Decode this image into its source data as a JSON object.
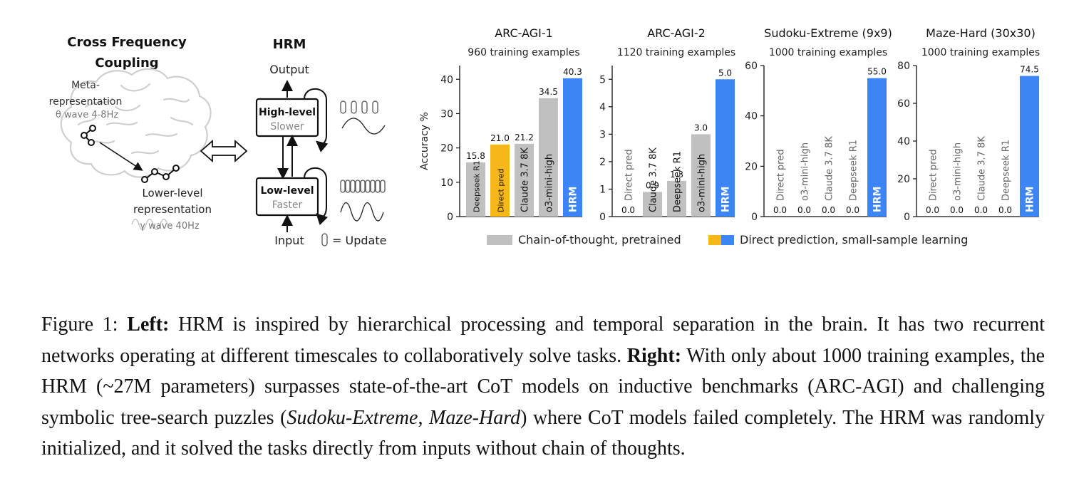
{
  "left_panel": {
    "brain_title_line1": "Cross Frequency",
    "brain_title_line2": "Coupling",
    "meta_label_line1": "Meta-",
    "meta_label_line2": "representation",
    "theta_label": "θ wave 4-8Hz",
    "lower_label_line1": "Lower-level",
    "lower_label_line2": "representation",
    "gamma_label": "γ wave 40Hz",
    "hrm_title": "HRM",
    "output_label": "Output",
    "input_label": "Input",
    "high_level_label": "High-level",
    "high_level_sub": "Slower",
    "low_level_label": "Low-level",
    "low_level_sub": "Faster",
    "update_legend": "= Update"
  },
  "chart_data": [
    {
      "type": "bar",
      "title": "ARC-AGI-1",
      "subtitle": "960 training examples",
      "ylabel": "Accuracy %",
      "ylim": [
        0,
        44
      ],
      "yticks": [
        0,
        10,
        20,
        30,
        40
      ],
      "categories": [
        "Deepseek R1",
        "Direct pred",
        "Claude 3.7 8K",
        "o3-mini-high",
        "HRM"
      ],
      "values": [
        15.8,
        21.0,
        21.2,
        34.5,
        40.3
      ],
      "value_labels": [
        "15.8",
        "21.0",
        "21.2",
        "34.5",
        "40.3"
      ],
      "groups": [
        "cot",
        "direct",
        "cot",
        "cot",
        "hrm"
      ]
    },
    {
      "type": "bar",
      "title": "ARC-AGI-2",
      "subtitle": "1120 training examples",
      "ylabel": "",
      "ylim": [
        0,
        5.5
      ],
      "yticks": [
        0,
        1,
        2,
        3,
        4,
        5
      ],
      "categories": [
        "Direct pred",
        "Claude 3.7 8K",
        "Deepseek R1",
        "o3-mini-high",
        "HRM"
      ],
      "values": [
        0.0,
        0.9,
        1.3,
        3.0,
        5.0
      ],
      "value_labels": [
        "0.0",
        "0.9",
        "1.3",
        "3.0",
        "5.0"
      ],
      "groups": [
        "cot",
        "cot",
        "cot",
        "cot",
        "hrm"
      ]
    },
    {
      "type": "bar",
      "title": "Sudoku-Extreme (9x9)",
      "subtitle": "1000 training examples",
      "ylabel": "",
      "ylim": [
        0,
        60
      ],
      "yticks": [
        0,
        20,
        40,
        60
      ],
      "categories": [
        "Direct pred",
        "o3-mini-high",
        "Claude 3.7 8K",
        "Deepseek R1",
        "HRM"
      ],
      "values": [
        0.0,
        0.0,
        0.0,
        0.0,
        55.0
      ],
      "value_labels": [
        "0.0",
        "0.0",
        "0.0",
        "0.0",
        "55.0"
      ],
      "groups": [
        "cot",
        "cot",
        "cot",
        "cot",
        "hrm"
      ]
    },
    {
      "type": "bar",
      "title": "Maze-Hard (30x30)",
      "subtitle": "1000 training examples",
      "ylabel": "",
      "ylim": [
        0,
        80
      ],
      "yticks": [
        0,
        20,
        40,
        60,
        80
      ],
      "categories": [
        "Direct pred",
        "o3-mini-high",
        "Claude 3.7 8K",
        "Deepseek R1",
        "HRM"
      ],
      "values": [
        0.0,
        0.0,
        0.0,
        0.0,
        74.5
      ],
      "value_labels": [
        "0.0",
        "0.0",
        "0.0",
        "0.0",
        "74.5"
      ],
      "groups": [
        "cot",
        "cot",
        "cot",
        "cot",
        "hrm"
      ]
    }
  ],
  "legend": {
    "cot_label": "Chain-of-thought, pretrained",
    "direct_label": "Direct prediction, small-sample learning"
  },
  "colors": {
    "cot": "#c0c0c0",
    "direct": "#f7b718",
    "hrm": "#3d85f5",
    "brain_outline": "#cfcfcf"
  },
  "caption": {
    "fig_label": "Figure 1:",
    "left_bold": "Left:",
    "text1": "HRM is inspired by hierarchical processing and temporal separation in the brain. It has two recurrent networks operating at different timescales to collaboratively solve tasks.",
    "right_bold": "Right:",
    "text2": "With only about 1000 training examples, the HRM (~27M parameters) surpasses state-of-the-art CoT models on inductive benchmarks (ARC-AGI) and challenging symbolic tree-search puzzles (",
    "italic1": "Sudoku-Extreme",
    "comma": ",",
    "italic2": "Maze-Hard",
    "text3": ") where CoT models failed completely.  The HRM was randomly initialized, and it solved the tasks directly from inputs without chain of thoughts."
  }
}
